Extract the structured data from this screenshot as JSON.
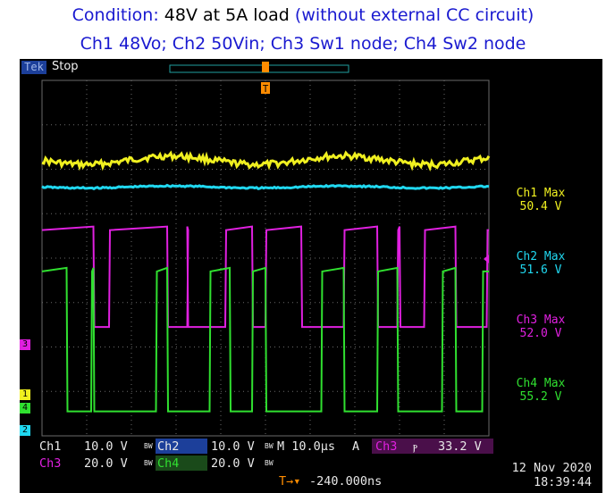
{
  "caption": {
    "line1_label": "Condition:",
    "line1_value": "48V at 5A load",
    "line1_note": "(without external CC circuit)",
    "line2": "Ch1 48Vo; Ch2 50Vin; Ch3 Sw1 node; Ch4 Sw2 node"
  },
  "scope": {
    "brand": "Tek",
    "acquisition": "Stop",
    "trigger_marker": "T",
    "channel_markers": {
      "ch3": "3",
      "ch1": "1",
      "ch4": "4",
      "ch2": "2"
    }
  },
  "colors": {
    "ch1": "#f0f020",
    "ch2": "#20d8f0",
    "ch3": "#e020e0",
    "ch4": "#30e030",
    "trigger": "#ff8c00",
    "grid": "#6a6a6a"
  },
  "measurements": [
    {
      "name": "Ch1 Max",
      "value": "50.4 V",
      "channel": "ch1"
    },
    {
      "name": "Ch2 Max",
      "value": "51.6 V",
      "channel": "ch2"
    },
    {
      "name": "Ch3 Max",
      "value": "52.0 V",
      "channel": "ch3"
    },
    {
      "name": "Ch4 Max",
      "value": "55.2 V",
      "channel": "ch4"
    }
  ],
  "settings": {
    "ch1": {
      "label": "Ch1",
      "scale": "10.0 V",
      "bw": "BW"
    },
    "ch2": {
      "label": "Ch2",
      "scale": "10.0 V",
      "bw": "BW"
    },
    "ch3": {
      "label": "Ch3",
      "scale": "20.0 V",
      "bw": "BW"
    },
    "ch4": {
      "label": "Ch4",
      "scale": "20.0 V",
      "bw": "BW"
    },
    "timebase": "M 10.0µs",
    "trigger_mode": "A",
    "trigger_source": "Ch3",
    "trigger_slope": "ⲣ",
    "trigger_level": "33.2 V",
    "position_marker": "T→▾",
    "position": "-240.000ns",
    "date": "12 Nov 2020",
    "time": "18:39:44"
  },
  "chart_data": {
    "type": "line",
    "time_per_div_us": 10,
    "divisions_x": 10,
    "divisions_y": 8,
    "grid": true,
    "series": [
      {
        "name": "Ch1",
        "kind": "ripple",
        "level_div": 2.2,
        "ripple_div": 0.12
      },
      {
        "name": "Ch2",
        "kind": "flat",
        "level_div": 1.6,
        "ripple_div": 0.03
      },
      {
        "name": "Ch3",
        "kind": "switch",
        "high_div": 0.63,
        "low_div": -1.55,
        "edges_div": [
          [
            1.15,
            1.5
          ],
          [
            2.8,
            3.25
          ],
          [
            3.25,
            4.1
          ],
          [
            4.7,
            5.0
          ],
          [
            5.8,
            6.75
          ],
          [
            7.5,
            7.95
          ],
          [
            8.0,
            8.55
          ],
          [
            9.25,
            9.95
          ]
        ]
      },
      {
        "name": "Ch4",
        "kind": "switch",
        "high_div": -0.3,
        "low_div": -3.45,
        "edges_div": [
          [
            0.55,
            1.1
          ],
          [
            1.15,
            2.55
          ],
          [
            2.8,
            3.75
          ],
          [
            4.2,
            4.7
          ],
          [
            5.0,
            6.25
          ],
          [
            6.75,
            7.5
          ],
          [
            7.95,
            8.95
          ],
          [
            9.25,
            9.85
          ]
        ]
      }
    ]
  }
}
